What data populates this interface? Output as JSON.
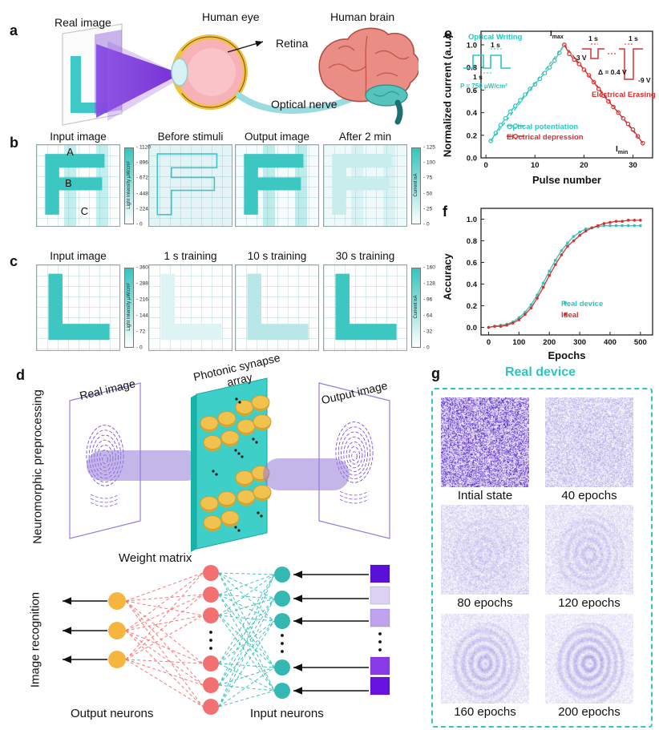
{
  "colors": {
    "teal_accent": "#2fc5be",
    "red_accent": "#d93030",
    "purple_fingerprint": "#6a2fe0",
    "gold_disk": "#f2c24e",
    "salmon_neuron": "#f37070",
    "teal_neuron": "#35b8b2",
    "gold_neuron": "#f5b53e",
    "input_squares": [
      "#5a10d9",
      "#ddd2f4",
      "#bfa3ee",
      "#8a3ae8",
      "#6612e0"
    ]
  },
  "panel_a": {
    "label": "a",
    "real_image": "Real image",
    "human_eye": "Human eye",
    "retina": "Retina",
    "optical_nerve": "Optical nerve",
    "human_brain": "Human brain"
  },
  "panel_b": {
    "label": "b",
    "titles": [
      "Input image",
      "Before stimuli",
      "Output image",
      "After 2 min"
    ],
    "annotations": [
      "A",
      "B",
      "C"
    ],
    "colorbar_left": {
      "title": "Light Intensity μW/cm²",
      "ticks": [
        "1120",
        "896",
        "672",
        "448",
        "224",
        "0"
      ]
    },
    "colorbar_right": {
      "title": "Current nA",
      "ticks": [
        "125",
        "100",
        "75",
        "50",
        "25",
        "0"
      ]
    }
  },
  "panel_c": {
    "label": "c",
    "titles": [
      "Input image",
      "1 s training",
      "10 s training",
      "30 s training"
    ],
    "colorbar_left": {
      "title": "Light Intensity μW/cm²",
      "ticks": [
        "360",
        "288",
        "216",
        "144",
        "72",
        "0"
      ]
    },
    "colorbar_right": {
      "title": "Current nA",
      "ticks": [
        "160",
        "128",
        "96",
        "64",
        "32",
        "0"
      ]
    }
  },
  "panel_d": {
    "label": "d",
    "side_label_top_line1": "Neuromorphic",
    "side_label_top_line2": "preprocessing",
    "side_label_bottom": "Image recognition",
    "real_image": "Real image",
    "array_line1": "Photonic synapse",
    "array_line2": "array",
    "output_image": "Output image",
    "weight_matrix": "Weight matrix",
    "output_neurons": "Output neurons",
    "input_neurons": "Input neurons"
  },
  "panel_e": {
    "label": "e",
    "ylabel": "Normalized current (a.u.)",
    "xlabel": "Pulse number",
    "inset_optical": {
      "title": "Optical Writing",
      "pulse_width": "1 s",
      "pulse_interval": "1 s",
      "power": "P = 750 μW/cm²"
    },
    "inset_electrical": {
      "title": "Electrical Erasing",
      "pulse_width_1": "1 s",
      "pulse_width_2": "1 s",
      "v_start": "-3 V",
      "v_step": "Δ = 0.4 V",
      "v_end": "-9 V"
    },
    "imax": {
      "base": "I",
      "sub": "max"
    },
    "imin": {
      "base": "I",
      "sub": "min"
    },
    "legend": [
      "Optical potentiation",
      "Electrical depression"
    ]
  },
  "panel_f": {
    "label": "f",
    "ylabel": "Accuracy",
    "xlabel": "Epochs",
    "legend": [
      "Real device",
      "Ideal"
    ]
  },
  "panel_g": {
    "label": "g",
    "title": "Real device",
    "items": [
      "Intial state",
      "40 epochs",
      "80 epochs",
      "120 epochs",
      "160 epochs",
      "200 epochs"
    ]
  },
  "chart_data": [
    {
      "panel": "e",
      "type": "line",
      "xlabel": "Pulse number",
      "ylabel": "Normalized current (a.u.)",
      "xlim": [
        -1,
        34
      ],
      "ylim": [
        0,
        1.12
      ],
      "xticks": [
        "0",
        "10",
        "20",
        "30"
      ],
      "yticks": [
        "0.0",
        "0.2",
        "0.4",
        "0.6",
        "0.8",
        "1.0"
      ],
      "legend_position": "inside bottom-center",
      "grid": false,
      "series": [
        {
          "name": "Optical potentiation",
          "color": "#2fc5be",
          "marker": "circle",
          "x": [
            1,
            2,
            3,
            4,
            5,
            6,
            7,
            8,
            9,
            10,
            11,
            12,
            13,
            14,
            15,
            16
          ],
          "y": [
            0.15,
            0.22,
            0.29,
            0.35,
            0.41,
            0.46,
            0.51,
            0.56,
            0.61,
            0.65,
            0.7,
            0.75,
            0.8,
            0.86,
            0.93,
            1.0
          ]
        },
        {
          "name": "Electrical depression",
          "color": "#d93030",
          "marker": "circle",
          "x": [
            16,
            17,
            18,
            19,
            20,
            21,
            22,
            23,
            24,
            25,
            26,
            27,
            28,
            29,
            30,
            31,
            32
          ],
          "y": [
            1.0,
            0.92,
            0.87,
            0.83,
            0.78,
            0.73,
            0.67,
            0.61,
            0.55,
            0.5,
            0.45,
            0.4,
            0.35,
            0.3,
            0.25,
            0.19,
            0.13
          ]
        },
        {
          "name": "linear reference potentiation",
          "color": "#2fc5be",
          "style": "dashed",
          "x": [
            1,
            16
          ],
          "y": [
            0.15,
            1.0
          ]
        },
        {
          "name": "linear reference depression",
          "color": "#d93030",
          "style": "dashed",
          "x": [
            16,
            32
          ],
          "y": [
            1.0,
            0.13
          ]
        }
      ],
      "annotations": [
        "Imax at pulse 16",
        "Imin at pulse 32",
        "Optical Writing inset: 1 s light pulses, 1 s interval, P = 750 μW/cm²",
        "Electrical Erasing inset: 1 s pulses from -3 V to -9 V, Δ = 0.4 V"
      ]
    },
    {
      "panel": "f",
      "type": "scatter",
      "xlabel": "Epochs",
      "ylabel": "Accuracy",
      "xlim": [
        -25,
        540
      ],
      "ylim": [
        -0.07,
        1.1
      ],
      "xticks": [
        "0",
        "100",
        "200",
        "300",
        "400",
        "500"
      ],
      "yticks": [
        "0.0",
        "0.2",
        "0.4",
        "0.6",
        "0.8",
        "1.0"
      ],
      "legend_position": "inside bottom-right",
      "grid": false,
      "series": [
        {
          "name": "Real device",
          "color": "#2fc5be",
          "marker": "dot",
          "x": [
            0,
            20,
            40,
            60,
            80,
            100,
            120,
            140,
            160,
            180,
            200,
            220,
            240,
            260,
            280,
            300,
            320,
            340,
            360,
            380,
            400,
            420,
            440,
            460,
            480,
            500
          ],
          "y": [
            0.0,
            0.01,
            0.02,
            0.03,
            0.05,
            0.09,
            0.14,
            0.21,
            0.3,
            0.41,
            0.52,
            0.62,
            0.71,
            0.78,
            0.84,
            0.88,
            0.91,
            0.92,
            0.93,
            0.94,
            0.94,
            0.94,
            0.94,
            0.94,
            0.94,
            0.94
          ]
        },
        {
          "name": "Ideal",
          "color": "#d93030",
          "marker": "dot",
          "x": [
            0,
            20,
            40,
            60,
            80,
            100,
            120,
            140,
            160,
            180,
            200,
            220,
            240,
            260,
            280,
            300,
            320,
            340,
            360,
            380,
            400,
            420,
            440,
            460,
            480,
            500
          ],
          "y": [
            0.0,
            0.01,
            0.01,
            0.02,
            0.04,
            0.07,
            0.12,
            0.18,
            0.27,
            0.37,
            0.48,
            0.58,
            0.67,
            0.75,
            0.8,
            0.85,
            0.89,
            0.92,
            0.94,
            0.96,
            0.97,
            0.98,
            0.98,
            0.99,
            0.99,
            0.99
          ]
        }
      ]
    }
  ]
}
